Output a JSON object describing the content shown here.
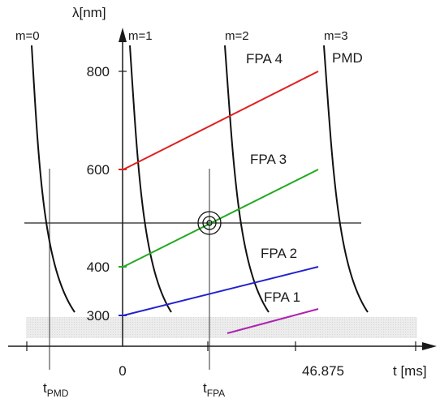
{
  "axes": {
    "y_label": "λ[nm]",
    "x_label": "t [ms]",
    "y_ticks": [
      "800",
      "600",
      "400",
      "300"
    ],
    "x_ticks": [
      "0",
      "46.875"
    ],
    "t_pmd": {
      "main": "t",
      "sub": "PMD"
    },
    "t_fpa": {
      "main": "t",
      "sub": "FPA"
    }
  },
  "orders": [
    {
      "label": "m=0"
    },
    {
      "label": "m=1"
    },
    {
      "label": "m=2"
    },
    {
      "label": "m=3"
    }
  ],
  "pmd_label": "PMD",
  "fpa": [
    {
      "label": "FPA 4",
      "color": "#e02020"
    },
    {
      "label": "FPA 3",
      "color": "#22aa22"
    },
    {
      "label": "FPA 2",
      "color": "#2222cc"
    },
    {
      "label": "FPA 1",
      "color": "#b020b0"
    }
  ],
  "colors": {
    "axis": "#1a1a1a",
    "band": "#e6e6e6"
  }
}
